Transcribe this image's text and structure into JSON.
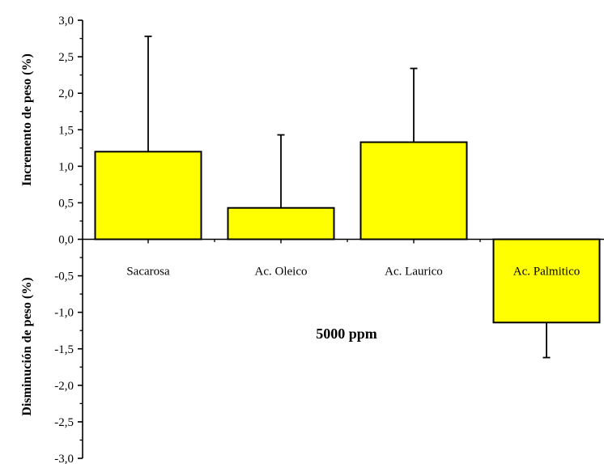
{
  "chart_data": {
    "type": "bar",
    "categories": [
      "Sacarosa",
      "Ac. Oleico",
      "Ac. Laurico",
      "Ac. Palmitico"
    ],
    "values": [
      1.2,
      0.43,
      1.33,
      -1.14
    ],
    "error_bars": [
      1.58,
      1.0,
      1.01,
      0.48
    ],
    "ylim": [
      -3.0,
      3.0
    ],
    "yticks": [
      "3,0",
      "2,5",
      "2,0",
      "1,5",
      "1,0",
      "0,5",
      "0,0",
      "-0,5",
      "-1,0",
      "-1,5",
      "-2,0",
      "-2,5",
      "-3,0"
    ],
    "ylabel_positive": "Incremento de peso (%)",
    "ylabel_negative": "Disminución de peso (%)",
    "annotation": "5000 ppm",
    "bar_color": "#ffff00",
    "grid": false
  }
}
